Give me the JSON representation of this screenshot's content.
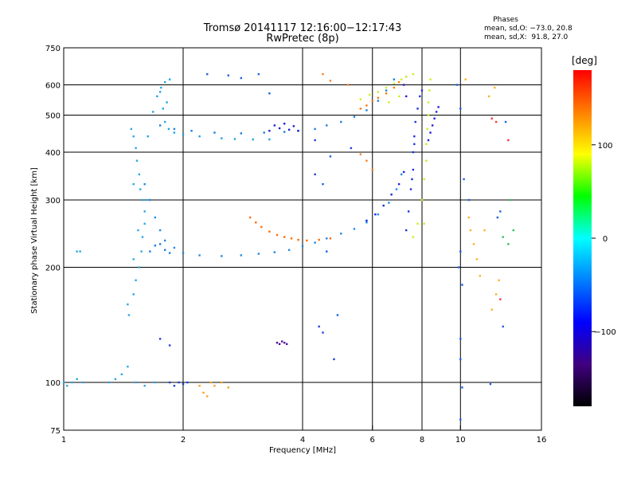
{
  "header": {
    "title_line1": "Tromsø 20141117 12:16:00−12:17:43",
    "title_line2": "RwPretec (8p)",
    "stats_title": "Phases",
    "stats_line1": "mean, sd,O: −73.0, 20.8",
    "stats_line2": "mean, sd,X:  91.8, 27.0"
  },
  "colorbar": {
    "unit": "[deg]",
    "ticks": [
      {
        "value": 100,
        "label": "100"
      },
      {
        "value": 0,
        "label": "0"
      },
      {
        "value": -100,
        "label": "−100"
      }
    ],
    "range": [
      -180,
      180
    ],
    "stops": [
      "#ff0000",
      "#ff8000",
      "#ffff00",
      "#00ff00",
      "#00ffff",
      "#0080ff",
      "#0000ff",
      "#400080",
      "#000000"
    ]
  },
  "chart_data": {
    "type": "scatter",
    "title": "Tromsø 20141117 12:16:00−12:17:43",
    "subtitle": "RwPretec (8p)",
    "xlabel": "Frequency [MHz]",
    "ylabel": "Stationary phase Virtual Height [km]",
    "xscale": "log",
    "yscale": "log",
    "xlim": [
      1,
      16
    ],
    "ylim": [
      75,
      750
    ],
    "grid": true,
    "xticks": [
      {
        "value": 1,
        "label": "1"
      },
      {
        "value": 2,
        "label": "2"
      },
      {
        "value": 4,
        "label": "4"
      },
      {
        "value": 6,
        "label": "6"
      },
      {
        "value": 8,
        "label": "8"
      },
      {
        "value": 10,
        "label": "10"
      },
      {
        "value": 16,
        "label": "16"
      }
    ],
    "yticks": [
      {
        "value": 75,
        "label": "75"
      },
      {
        "value": 100,
        "label": "100"
      },
      {
        "value": 200,
        "label": "200"
      },
      {
        "value": 300,
        "label": "300"
      },
      {
        "value": 400,
        "label": "400"
      },
      {
        "value": 500,
        "label": "500"
      },
      {
        "value": 600,
        "label": "600"
      },
      {
        "value": 750,
        "label": "750"
      }
    ],
    "gridlines_x": [
      2,
      4,
      6,
      8,
      10
    ],
    "gridlines_y": [
      100,
      200,
      300,
      400,
      500,
      600
    ],
    "color_quantity": "phase [deg]",
    "series": [
      {
        "color": "#1aa6e6",
        "points": [
          [
            1.63,
            440
          ],
          [
            1.68,
            510
          ],
          [
            1.72,
            560
          ],
          [
            1.76,
            590
          ],
          [
            1.8,
            610
          ],
          [
            1.85,
            620
          ],
          [
            1.78,
            520
          ],
          [
            1.8,
            480
          ],
          [
            1.84,
            460
          ],
          [
            1.9,
            450
          ],
          [
            2.0,
            445
          ],
          [
            2.2,
            440
          ],
          [
            2.5,
            435
          ],
          [
            2.7,
            433
          ],
          [
            3.0,
            432
          ],
          [
            3.3,
            432
          ],
          [
            1.82,
            540
          ],
          [
            1.75,
            575
          ]
        ]
      },
      {
        "color": "#1a7fe0",
        "points": [
          [
            1.75,
            470
          ],
          [
            1.9,
            460
          ],
          [
            2.1,
            455
          ],
          [
            2.4,
            450
          ],
          [
            2.8,
            448
          ],
          [
            3.2,
            450
          ],
          [
            3.6,
            452
          ],
          [
            3.9,
            455
          ],
          [
            4.3,
            460
          ],
          [
            4.6,
            470
          ],
          [
            5.0,
            480
          ],
          [
            5.4,
            495
          ],
          [
            5.8,
            515
          ],
          [
            6.2,
            545
          ],
          [
            6.5,
            580
          ],
          [
            6.8,
            620
          ]
        ]
      },
      {
        "color": "#2020dd",
        "points": [
          [
            3.3,
            455
          ],
          [
            3.5,
            462
          ],
          [
            3.7,
            458
          ],
          [
            3.9,
            455
          ],
          [
            3.4,
            470
          ],
          [
            3.6,
            475
          ],
          [
            3.8,
            468
          ],
          [
            7.2,
            600
          ],
          [
            7.3,
            560
          ]
        ]
      },
      {
        "color": "#ff7a10",
        "points": [
          [
            5.6,
            520
          ],
          [
            5.8,
            530
          ],
          [
            6.0,
            545
          ],
          [
            6.2,
            555
          ],
          [
            6.5,
            570
          ],
          [
            6.8,
            590
          ],
          [
            7.0,
            610
          ],
          [
            7.3,
            630
          ]
        ]
      },
      {
        "color": "#c8f020",
        "points": [
          [
            5.6,
            550
          ],
          [
            5.9,
            565
          ],
          [
            6.2,
            575
          ],
          [
            6.5,
            590
          ],
          [
            6.8,
            605
          ],
          [
            7.1,
            620
          ],
          [
            7.3,
            630
          ],
          [
            7.6,
            640
          ],
          [
            7.0,
            560
          ],
          [
            6.6,
            540
          ]
        ]
      },
      {
        "color": "#2030e0",
        "points": [
          [
            7.3,
            250
          ],
          [
            7.4,
            280
          ],
          [
            7.5,
            320
          ],
          [
            7.6,
            360
          ],
          [
            7.6,
            400
          ],
          [
            7.65,
            440
          ],
          [
            7.7,
            480
          ],
          [
            7.8,
            520
          ],
          [
            7.9,
            560
          ],
          [
            8.0,
            580
          ],
          [
            7.55,
            340
          ],
          [
            7.65,
            420
          ]
        ]
      },
      {
        "color": "#c8f020",
        "points": [
          [
            7.6,
            240
          ],
          [
            7.8,
            260
          ],
          [
            8.0,
            300
          ],
          [
            8.1,
            340
          ],
          [
            8.2,
            380
          ],
          [
            8.2,
            420
          ],
          [
            8.25,
            460
          ],
          [
            8.3,
            500
          ],
          [
            8.3,
            540
          ],
          [
            8.35,
            580
          ],
          [
            8.4,
            620
          ],
          [
            8.1,
            260
          ]
        ]
      },
      {
        "color": "#2020dd",
        "points": [
          [
            8.3,
            430
          ],
          [
            8.4,
            450
          ],
          [
            8.5,
            470
          ],
          [
            8.6,
            490
          ],
          [
            8.7,
            510
          ],
          [
            8.8,
            525
          ]
        ]
      },
      {
        "color": "#2aa8e4",
        "points": [
          [
            1.45,
            160
          ],
          [
            1.5,
            170
          ],
          [
            1.52,
            185
          ],
          [
            1.55,
            200
          ],
          [
            1.57,
            220
          ],
          [
            1.58,
            240
          ],
          [
            1.6,
            260
          ],
          [
            1.6,
            280
          ],
          [
            1.58,
            300
          ],
          [
            1.56,
            320
          ],
          [
            1.55,
            350
          ],
          [
            1.53,
            380
          ],
          [
            1.52,
            410
          ],
          [
            1.5,
            440
          ],
          [
            1.48,
            460
          ],
          [
            1.46,
            150
          ],
          [
            1.5,
            210
          ],
          [
            1.54,
            250
          ],
          [
            1.62,
            300
          ],
          [
            1.5,
            330
          ]
        ]
      },
      {
        "color": "#1f8ae6",
        "points": [
          [
            1.6,
            330
          ],
          [
            1.65,
            300
          ],
          [
            1.7,
            270
          ],
          [
            1.75,
            250
          ],
          [
            1.8,
            235
          ],
          [
            1.9,
            225
          ],
          [
            2.0,
            218
          ],
          [
            2.2,
            215
          ],
          [
            2.5,
            214
          ],
          [
            2.8,
            215
          ],
          [
            3.1,
            217
          ],
          [
            3.4,
            219
          ],
          [
            3.7,
            222
          ],
          [
            4.0,
            227
          ],
          [
            4.3,
            232
          ],
          [
            4.6,
            238
          ],
          [
            5.0,
            245
          ],
          [
            5.4,
            252
          ],
          [
            5.8,
            262
          ],
          [
            6.2,
            275
          ],
          [
            6.6,
            295
          ],
          [
            6.9,
            320
          ],
          [
            7.1,
            350
          ]
        ]
      },
      {
        "color": "#1428d8",
        "points": [
          [
            5.8,
            265
          ],
          [
            6.1,
            275
          ],
          [
            6.4,
            290
          ],
          [
            6.7,
            310
          ],
          [
            7.0,
            330
          ],
          [
            7.2,
            355
          ]
        ]
      },
      {
        "color": "#ff6a00",
        "points": [
          [
            2.95,
            270
          ],
          [
            3.05,
            262
          ],
          [
            3.15,
            255
          ],
          [
            3.3,
            248
          ],
          [
            3.45,
            243
          ],
          [
            3.6,
            240
          ],
          [
            3.75,
            238
          ],
          [
            3.9,
            236
          ],
          [
            4.1,
            235
          ],
          [
            4.4,
            236
          ],
          [
            4.7,
            238
          ]
        ]
      },
      {
        "color": "#1a7fe0",
        "points": [
          [
            1.65,
            220
          ],
          [
            1.7,
            228
          ],
          [
            1.75,
            230
          ],
          [
            1.8,
            222
          ],
          [
            1.85,
            218
          ]
        ]
      },
      {
        "color": "#2aa8e4",
        "points": [
          [
            1.0,
            100
          ],
          [
            1.02,
            98
          ],
          [
            1.05,
            100
          ],
          [
            1.08,
            102
          ],
          [
            1.12,
            100
          ],
          [
            1.3,
            100
          ],
          [
            1.35,
            102
          ],
          [
            1.4,
            105
          ],
          [
            1.45,
            110
          ],
          [
            1.52,
            100
          ],
          [
            1.6,
            98
          ],
          [
            1.7,
            100
          ],
          [
            1.08,
            220
          ],
          [
            1.1,
            220
          ]
        ]
      },
      {
        "color": "#2040e0",
        "points": [
          [
            1.85,
            100
          ],
          [
            1.9,
            98
          ],
          [
            1.95,
            100
          ],
          [
            2.0,
            99
          ],
          [
            2.05,
            100
          ],
          [
            1.75,
            130
          ],
          [
            1.85,
            125
          ]
        ]
      },
      {
        "color": "#ffa020",
        "points": [
          [
            2.2,
            98
          ],
          [
            2.25,
            94
          ],
          [
            2.3,
            92
          ],
          [
            2.35,
            100
          ],
          [
            2.4,
            98
          ],
          [
            2.5,
            100
          ],
          [
            2.6,
            97
          ]
        ]
      },
      {
        "color": "#5010a0",
        "points": [
          [
            3.45,
            127
          ],
          [
            3.5,
            126
          ],
          [
            3.55,
            128
          ],
          [
            3.6,
            127
          ],
          [
            3.65,
            126
          ]
        ]
      },
      {
        "color": "#1a60e8",
        "points": [
          [
            9.9,
            200
          ],
          [
            10.0,
            220
          ],
          [
            10.1,
            180
          ],
          [
            10.0,
            130
          ],
          [
            10.0,
            115
          ],
          [
            10.1,
            97
          ],
          [
            10.0,
            80
          ],
          [
            10.2,
            340
          ],
          [
            9.8,
            600
          ],
          [
            10.0,
            520
          ]
        ]
      },
      {
        "color": "#ffb020",
        "points": [
          [
            10.5,
            270
          ],
          [
            10.6,
            250
          ],
          [
            10.8,
            230
          ],
          [
            11.0,
            210
          ],
          [
            11.2,
            190
          ],
          [
            12.0,
            155
          ],
          [
            12.3,
            170
          ],
          [
            12.5,
            185
          ],
          [
            11.5,
            250
          ],
          [
            10.3,
            620
          ],
          [
            12.2,
            590
          ],
          [
            11.8,
            560
          ]
        ]
      },
      {
        "color": "#ff3030",
        "points": [
          [
            12.6,
            165
          ],
          [
            12.3,
            480
          ],
          [
            12.0,
            490
          ],
          [
            13.2,
            430
          ]
        ]
      },
      {
        "color": "#30c060",
        "points": [
          [
            13.4,
            300
          ],
          [
            13.6,
            250
          ],
          [
            13.2,
            230
          ],
          [
            12.8,
            240
          ]
        ]
      },
      {
        "color": "#2060e0",
        "points": [
          [
            12.4,
            270
          ],
          [
            12.6,
            280
          ],
          [
            12.8,
            140
          ],
          [
            11.9,
            99
          ],
          [
            13.0,
            480
          ],
          [
            10.5,
            300
          ]
        ]
      },
      {
        "color": "#ff8020",
        "points": [
          [
            4.5,
            640
          ],
          [
            4.7,
            615
          ],
          [
            5.2,
            600
          ],
          [
            5.6,
            395
          ],
          [
            5.8,
            380
          ],
          [
            6.0,
            360
          ]
        ]
      },
      {
        "color": "#1a60e8",
        "points": [
          [
            2.3,
            640
          ],
          [
            2.6,
            635
          ],
          [
            2.8,
            625
          ],
          [
            3.1,
            640
          ],
          [
            3.3,
            570
          ],
          [
            4.5,
            330
          ],
          [
            4.6,
            220
          ],
          [
            4.9,
            150
          ],
          [
            4.7,
            390
          ]
        ]
      },
      {
        "color": "#2040e0",
        "points": [
          [
            4.4,
            140
          ],
          [
            4.5,
            135
          ],
          [
            4.8,
            115
          ],
          [
            4.3,
            430
          ],
          [
            4.3,
            350
          ],
          [
            5.3,
            410
          ]
        ]
      }
    ]
  }
}
